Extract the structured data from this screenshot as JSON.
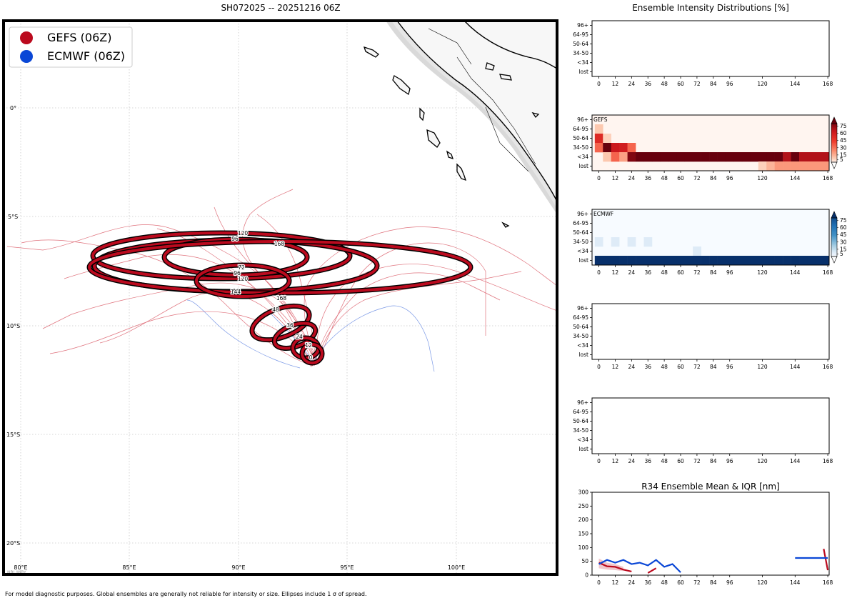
{
  "map": {
    "title": "SH072025 -- 20251216 06Z",
    "lat_ticks": [
      "0°",
      "5°S",
      "10°S",
      "15°S",
      "20°S"
    ],
    "lon_ticks": [
      "80°E",
      "85°E",
      "90°E",
      "95°E",
      "100°E"
    ],
    "legend": [
      {
        "label": "GEFS (06Z)",
        "color": "#bb0a1e"
      },
      {
        "label": "ECMWF (06Z)",
        "color": "#0a47d6"
      }
    ],
    "ellipse_labels": [
      "120",
      "96",
      "168",
      "72",
      "96",
      "120",
      "144",
      "168",
      "48",
      "36",
      "24",
      "12",
      "0"
    ],
    "watermark": "NRL/MRY",
    "footnote": "For model diagnostic purposes. Global ensembles are generally not reliable for intensity or size. Ellipses include 1 σ of spread."
  },
  "right_title": "Ensemble Intensity Distributions [%]",
  "y_labels": [
    "96+",
    "64-95",
    "50-64",
    "34-50",
    "<34",
    "lost"
  ],
  "x_ticks": [
    "0",
    "12",
    "24",
    "36",
    "48",
    "60",
    "72",
    "84",
    "96",
    "120",
    "144",
    "168"
  ],
  "panels": [
    {
      "label": ""
    },
    {
      "label": "GEFS"
    },
    {
      "label": "ECMWF"
    },
    {
      "label": ""
    },
    {
      "label": ""
    }
  ],
  "colorbar_ticks": [
    "75",
    "60",
    "45",
    "30",
    "15",
    "5"
  ],
  "chart_data": [
    {
      "type": "heatmap",
      "title": "GEFS",
      "x": [
        0,
        6,
        12,
        18,
        24,
        30,
        36,
        42,
        48,
        54,
        60,
        66,
        72,
        78,
        84,
        90,
        96,
        102,
        108,
        114,
        120,
        126,
        132,
        138,
        144,
        150,
        156,
        162,
        168
      ],
      "rows": [
        "96+",
        "64-95",
        "50-64",
        "34-50",
        "<34",
        "lost"
      ],
      "cells": [
        {
          "row": "64-95",
          "x": 0,
          "v": 10
        },
        {
          "row": "50-64",
          "x": 0,
          "v": 55
        },
        {
          "row": "50-64",
          "x": 6,
          "v": 8
        },
        {
          "row": "34-50",
          "x": 0,
          "v": 35
        },
        {
          "row": "34-50",
          "x": 6,
          "v": 85
        },
        {
          "row": "34-50",
          "x": 12,
          "v": 65
        },
        {
          "row": "34-50",
          "x": 18,
          "v": 62
        },
        {
          "row": "34-50",
          "x": 24,
          "v": 35
        },
        {
          "row": "<34",
          "x": 6,
          "v": 10
        },
        {
          "row": "<34",
          "x": 12,
          "v": 35
        },
        {
          "row": "<34",
          "x": 18,
          "v": 20
        },
        {
          "row": "<34",
          "x": 24,
          "v": 80
        },
        {
          "row": "<34",
          "x": 30,
          "v": 85
        },
        {
          "row": "<34",
          "x": 36,
          "v": 85
        },
        {
          "row": "<34",
          "x": 42,
          "v": 85
        },
        {
          "row": "<34",
          "x": 48,
          "v": 85
        },
        {
          "row": "<34",
          "x": 54,
          "v": 85
        },
        {
          "row": "<34",
          "x": 60,
          "v": 85
        },
        {
          "row": "<34",
          "x": 66,
          "v": 85
        },
        {
          "row": "<34",
          "x": 72,
          "v": 85
        },
        {
          "row": "<34",
          "x": 78,
          "v": 85
        },
        {
          "row": "<34",
          "x": 84,
          "v": 85
        },
        {
          "row": "<34",
          "x": 90,
          "v": 85
        },
        {
          "row": "<34",
          "x": 96,
          "v": 85
        },
        {
          "row": "<34",
          "x": 102,
          "v": 85
        },
        {
          "row": "<34",
          "x": 108,
          "v": 85
        },
        {
          "row": "<34",
          "x": 114,
          "v": 85
        },
        {
          "row": "<34",
          "x": 120,
          "v": 85
        },
        {
          "row": "<34",
          "x": 126,
          "v": 85
        },
        {
          "row": "<34",
          "x": 132,
          "v": 85
        },
        {
          "row": "<34",
          "x": 138,
          "v": 70
        },
        {
          "row": "<34",
          "x": 144,
          "v": 85
        },
        {
          "row": "<34",
          "x": 150,
          "v": 70
        },
        {
          "row": "<34",
          "x": 156,
          "v": 70
        },
        {
          "row": "<34",
          "x": 162,
          "v": 70
        },
        {
          "row": "<34",
          "x": 168,
          "v": 70
        },
        {
          "row": "lost",
          "x": 120,
          "v": 8
        },
        {
          "row": "lost",
          "x": 126,
          "v": 15
        },
        {
          "row": "lost",
          "x": 132,
          "v": 22
        },
        {
          "row": "lost",
          "x": 138,
          "v": 22
        },
        {
          "row": "lost",
          "x": 144,
          "v": 22
        },
        {
          "row": "lost",
          "x": 150,
          "v": 22
        },
        {
          "row": "lost",
          "x": 156,
          "v": 22
        },
        {
          "row": "lost",
          "x": 162,
          "v": 22
        },
        {
          "row": "lost",
          "x": 168,
          "v": 22
        }
      ]
    },
    {
      "type": "heatmap",
      "title": "ECMWF",
      "x": [
        0,
        6,
        12,
        18,
        24,
        30,
        36,
        42,
        48,
        54,
        60,
        66,
        72,
        78,
        84,
        90,
        96,
        102,
        108,
        114,
        120,
        126,
        132,
        138,
        144,
        150,
        156,
        162,
        168
      ],
      "rows": [
        "96+",
        "64-95",
        "50-64",
        "34-50",
        "<34",
        "lost"
      ],
      "cells": [
        {
          "row": "34-50",
          "x": 0,
          "v": 10
        },
        {
          "row": "34-50",
          "x": 12,
          "v": 10
        },
        {
          "row": "34-50",
          "x": 24,
          "v": 10
        },
        {
          "row": "34-50",
          "x": 36,
          "v": 10
        },
        {
          "row": "<34",
          "x": 72,
          "v": 10
        },
        {
          "row": "lost",
          "x": 0,
          "v": 95
        },
        {
          "row": "lost",
          "x": 6,
          "v": 95
        },
        {
          "row": "lost",
          "x": 12,
          "v": 95
        },
        {
          "row": "lost",
          "x": 18,
          "v": 95
        },
        {
          "row": "lost",
          "x": 24,
          "v": 95
        },
        {
          "row": "lost",
          "x": 30,
          "v": 95
        },
        {
          "row": "lost",
          "x": 36,
          "v": 95
        },
        {
          "row": "lost",
          "x": 42,
          "v": 95
        },
        {
          "row": "lost",
          "x": 48,
          "v": 95
        },
        {
          "row": "lost",
          "x": 54,
          "v": 95
        },
        {
          "row": "lost",
          "x": 60,
          "v": 95
        },
        {
          "row": "lost",
          "x": 66,
          "v": 95
        },
        {
          "row": "lost",
          "x": 72,
          "v": 95
        },
        {
          "row": "lost",
          "x": 78,
          "v": 95
        },
        {
          "row": "lost",
          "x": 84,
          "v": 95
        },
        {
          "row": "lost",
          "x": 90,
          "v": 95
        },
        {
          "row": "lost",
          "x": 96,
          "v": 95
        },
        {
          "row": "lost",
          "x": 102,
          "v": 95
        },
        {
          "row": "lost",
          "x": 108,
          "v": 95
        },
        {
          "row": "lost",
          "x": 114,
          "v": 95
        },
        {
          "row": "lost",
          "x": 120,
          "v": 95
        },
        {
          "row": "lost",
          "x": 126,
          "v": 95
        },
        {
          "row": "lost",
          "x": 132,
          "v": 95
        },
        {
          "row": "lost",
          "x": 138,
          "v": 95
        },
        {
          "row": "lost",
          "x": 144,
          "v": 95
        },
        {
          "row": "lost",
          "x": 150,
          "v": 95
        },
        {
          "row": "lost",
          "x": 156,
          "v": 95
        },
        {
          "row": "lost",
          "x": 162,
          "v": 95
        },
        {
          "row": "lost",
          "x": 168,
          "v": 95
        }
      ]
    },
    {
      "type": "line",
      "title": "R34 Ensemble Mean & IQR [nm]",
      "ylim": [
        0,
        300
      ],
      "yticks": [
        "0",
        "50",
        "100",
        "150",
        "200",
        "250",
        "300"
      ],
      "series": [
        {
          "name": "GEFS",
          "color": "#bb0a1e",
          "segments": [
            [
              [
                0,
                45
              ],
              [
                6,
                32
              ],
              [
                12,
                30
              ],
              [
                18,
                20
              ],
              [
                24,
                13
              ]
            ],
            [
              [
                36,
                8
              ],
              [
                42,
                25
              ]
            ],
            [
              [
                165,
                95
              ],
              [
                168,
                18
              ]
            ]
          ]
        },
        {
          "name": "ECMWF",
          "color": "#0a47d6",
          "segments": [
            [
              [
                0,
                40
              ],
              [
                6,
                55
              ],
              [
                12,
                45
              ],
              [
                18,
                55
              ],
              [
                24,
                40
              ],
              [
                30,
                45
              ],
              [
                36,
                35
              ],
              [
                42,
                55
              ],
              [
                48,
                30
              ],
              [
                54,
                40
              ],
              [
                60,
                10
              ]
            ],
            [
              [
                144,
                62
              ],
              [
                168,
                62
              ]
            ]
          ]
        }
      ],
      "iqr": {
        "color": "#e8a0a8",
        "upper": [
          [
            0,
            60
          ],
          [
            6,
            45
          ],
          [
            12,
            40
          ],
          [
            18,
            30
          ]
        ],
        "lower": [
          [
            0,
            25
          ],
          [
            6,
            20
          ],
          [
            12,
            18
          ],
          [
            18,
            15
          ]
        ]
      }
    }
  ]
}
